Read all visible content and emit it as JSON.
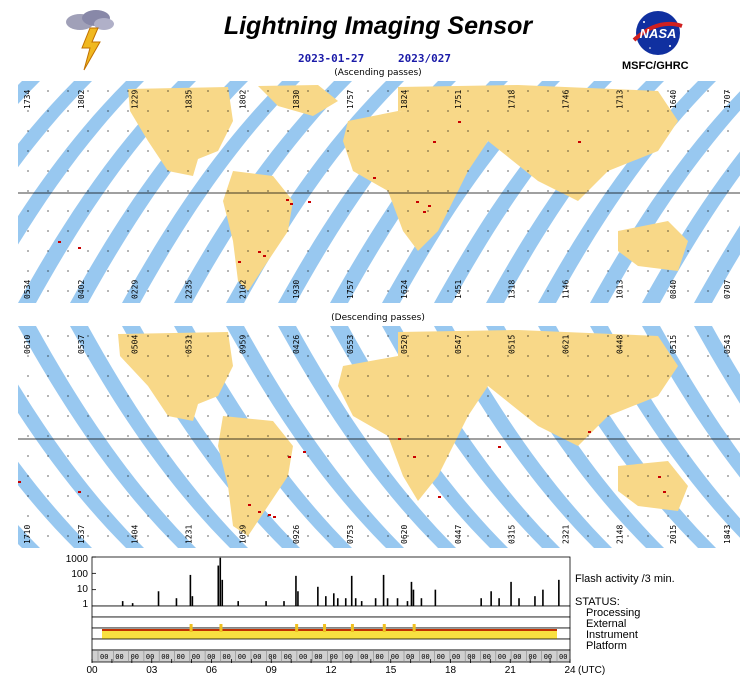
{
  "header": {
    "title": "Lightning Imaging Sensor",
    "date_iso": "2023-01-27",
    "date_doy": "2023/027",
    "org": "MSFC/GHRC",
    "nasa_logo_text": "NASA"
  },
  "maps": {
    "ascending": {
      "caption": "(Ascending passes)",
      "top_labels": [
        "1734",
        "1802",
        "1229",
        "1835",
        "1802",
        "1830",
        "1757",
        "1824",
        "1751",
        "1718",
        "1746",
        "1713",
        "1640",
        "1707"
      ],
      "bottom_labels": [
        "0534",
        "0402",
        "0229",
        "2235",
        "2102",
        "1930",
        "1757",
        "1624",
        "1451",
        "1318",
        "1146",
        "1013",
        "0840",
        "0707"
      ]
    },
    "descending": {
      "caption": "(Descending passes)",
      "top_labels": [
        "0610",
        "0537",
        "0504",
        "0531",
        "0959",
        "0426",
        "0553",
        "0520",
        "0547",
        "0515",
        "0621",
        "0448",
        "0515",
        "0543"
      ],
      "bottom_labels": [
        "1710",
        "1537",
        "1404",
        "1231",
        "1059",
        "0926",
        "0753",
        "0620",
        "0447",
        "0315",
        "2321",
        "2148",
        "2015",
        "1843"
      ]
    }
  },
  "chart_data": {
    "type": "bar",
    "title": "",
    "series_label": "Flash activity /3 min.",
    "yscale": "log",
    "ylim": [
      1,
      1000
    ],
    "ytick_labels": [
      "1000",
      "100",
      "10",
      "1"
    ],
    "xlim": [
      0,
      24
    ],
    "xtick_labels": [
      "00",
      "03",
      "06",
      "09",
      "12",
      "15",
      "18",
      "21",
      "24"
    ],
    "xunit": "(UTC)",
    "flash_activity": [
      {
        "t": 1.5,
        "v": 2
      },
      {
        "t": 2.0,
        "v": 1.5
      },
      {
        "t": 3.3,
        "v": 8
      },
      {
        "t": 4.2,
        "v": 3
      },
      {
        "t": 4.9,
        "v": 80
      },
      {
        "t": 5.0,
        "v": 4
      },
      {
        "t": 6.3,
        "v": 300
      },
      {
        "t": 6.4,
        "v": 900
      },
      {
        "t": 6.5,
        "v": 40
      },
      {
        "t": 7.3,
        "v": 2
      },
      {
        "t": 8.7,
        "v": 2
      },
      {
        "t": 9.6,
        "v": 2
      },
      {
        "t": 10.2,
        "v": 70
      },
      {
        "t": 10.3,
        "v": 8
      },
      {
        "t": 11.3,
        "v": 15
      },
      {
        "t": 11.7,
        "v": 4
      },
      {
        "t": 12.1,
        "v": 6
      },
      {
        "t": 12.3,
        "v": 3
      },
      {
        "t": 12.7,
        "v": 3
      },
      {
        "t": 13.0,
        "v": 70
      },
      {
        "t": 13.2,
        "v": 3
      },
      {
        "t": 13.5,
        "v": 2
      },
      {
        "t": 14.2,
        "v": 3
      },
      {
        "t": 14.6,
        "v": 80
      },
      {
        "t": 14.8,
        "v": 3
      },
      {
        "t": 15.3,
        "v": 3
      },
      {
        "t": 15.8,
        "v": 2
      },
      {
        "t": 16.0,
        "v": 30
      },
      {
        "t": 16.1,
        "v": 10
      },
      {
        "t": 16.5,
        "v": 3
      },
      {
        "t": 17.2,
        "v": 10
      },
      {
        "t": 19.5,
        "v": 3
      },
      {
        "t": 20.0,
        "v": 8
      },
      {
        "t": 20.4,
        "v": 3
      },
      {
        "t": 21.0,
        "v": 30
      },
      {
        "t": 21.4,
        "v": 3
      },
      {
        "t": 22.2,
        "v": 4
      },
      {
        "t": 22.6,
        "v": 10
      },
      {
        "t": 23.4,
        "v": 40
      }
    ],
    "status": {
      "title": "STATUS:",
      "rows": [
        "Processing",
        "External",
        "Instrument",
        "Platform"
      ],
      "platform_marks": [
        "00",
        "00",
        "00",
        "00",
        "00",
        "00",
        "00",
        "00",
        "00",
        "00",
        "00",
        "00",
        "00",
        "00",
        "00",
        "00",
        "00",
        "00",
        "00",
        "00",
        "00",
        "00",
        "00",
        "00",
        "00",
        "00",
        "00",
        "00",
        "00",
        "00",
        "00"
      ]
    }
  },
  "colors": {
    "ocean_swath": "#98c8f0",
    "land_swath": "#f8d888",
    "land_dark": "#b0b0b0",
    "lightning": "#c80000",
    "instrument_bar": "#f0c020",
    "instrument_line": "#c03000",
    "title_blue": "#1a1aa8"
  }
}
